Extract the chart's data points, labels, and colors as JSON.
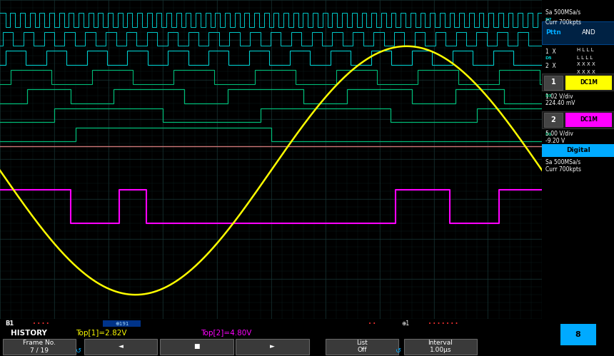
{
  "bg_color": "#000000",
  "grid_color": "#1a3a3a",
  "sine_color": "#ffff00",
  "magenta_color": "#ff00ff",
  "d0_color": "#cc7777",
  "cyan_color": "#00cccc",
  "green_color": "#00bb77",
  "title_text": "HISTORY",
  "top1": "Top[1]=2.82V",
  "top2": "Top[2]=4.80V",
  "ch1_vdiv": "1.02 V/div",
  "ch1_offset": "224.40 mV",
  "ch2_vdiv": "5.00 V/div",
  "ch2_offset": "-9.20 V",
  "sa_rate": "Sa 500MSa/s",
  "curr_pts": "Curr 700kpts",
  "pttn_label": "Pttn",
  "and_label": "AND",
  "trigger_color": "#00aaff",
  "bottom_bar_color": "#1188cc",
  "right_bg": "#111111",
  "frame_no": "Frame No.\n7 / 19",
  "interval_text": "Interval\n1.00μs",
  "list_off": "List\nOff",
  "dc1m_color": "#ffff00",
  "dc2m_color": "#ff00ff",
  "digital_box_color": "#00aaff"
}
